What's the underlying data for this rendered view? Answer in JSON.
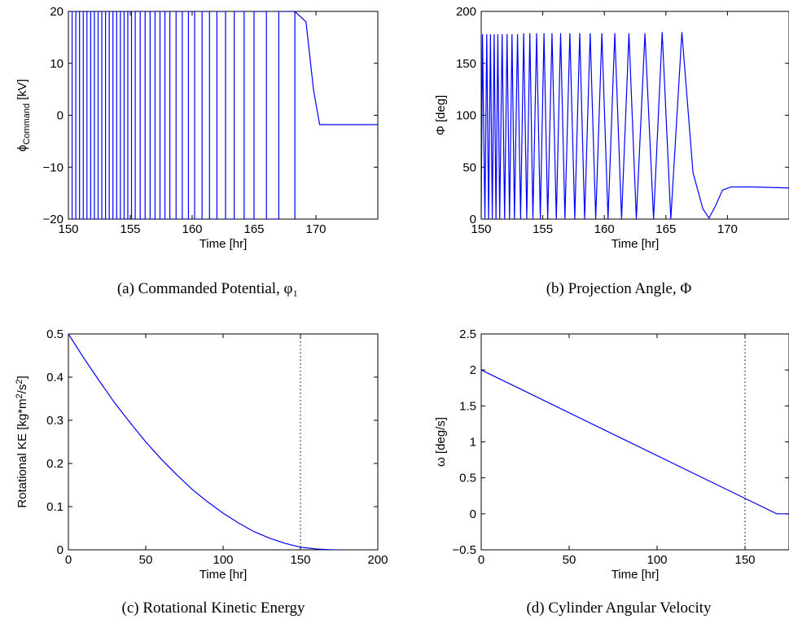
{
  "chart_data": [
    {
      "type": "line",
      "caption": "(a) Commanded Potential, φ₁",
      "xlabel": "Time [hr]",
      "ylabel": "φ_Command [kV]",
      "xlim": [
        150,
        175
      ],
      "ylim": [
        -20,
        20
      ],
      "xticks": [
        150,
        155,
        160,
        165,
        170
      ],
      "yticks": [
        -20,
        -10,
        0,
        10,
        20
      ],
      "series": [
        {
          "description": "square-wave switching between +20 and -20 kV with decreasing frequency, then settles",
          "switch_times": [
            150.3,
            150.6,
            150.9,
            151.2,
            151.5,
            151.8,
            152.1,
            152.4,
            152.7,
            153.0,
            153.3,
            153.6,
            153.9,
            154.2,
            154.5,
            154.8,
            155.1,
            155.4,
            155.8,
            156.2,
            156.6,
            157.0,
            157.4,
            157.8,
            158.2,
            158.7,
            159.2,
            159.7,
            160.2,
            160.8,
            161.4,
            162.0,
            162.7,
            163.4,
            164.2,
            165.0,
            166.0,
            167.0,
            168.3
          ],
          "settle_x": [
            168.3,
            169.2,
            169.8,
            170.3,
            175
          ],
          "settle_y": [
            20,
            18,
            5,
            -1.8,
            -1.8
          ]
        }
      ]
    },
    {
      "type": "line",
      "caption": "(b) Projection Angle, Φ",
      "xlabel": "Time [hr]",
      "ylabel": "Φ [deg]",
      "xlim": [
        150,
        175
      ],
      "ylim": [
        0,
        200
      ],
      "xticks": [
        150,
        155,
        160,
        165,
        170
      ],
      "yticks": [
        0,
        50,
        100,
        150,
        200
      ],
      "series": [
        {
          "x": [
            150.0,
            150.1,
            150.3,
            150.45,
            150.6,
            150.75,
            150.9,
            151.05,
            151.2,
            151.35,
            151.5,
            151.7,
            151.9,
            152.1,
            152.3,
            152.5,
            152.7,
            152.95,
            153.2,
            153.45,
            153.7,
            153.95,
            154.2,
            154.5,
            154.8,
            155.1,
            155.4,
            155.75,
            156.1,
            156.45,
            156.8,
            157.2,
            157.6,
            158.0,
            158.4,
            158.85,
            159.3,
            159.8,
            160.3,
            160.85,
            161.4,
            162.0,
            162.6,
            163.3,
            164.0,
            164.7,
            165.4,
            166.3,
            167.2,
            168.0,
            168.5,
            169.0,
            169.6,
            170.3,
            172.0,
            175.0
          ],
          "y": [
            0,
            178,
            0,
            178,
            0,
            178,
            0,
            178,
            0,
            178,
            0,
            178,
            0,
            178,
            0,
            178,
            0,
            178,
            0,
            179,
            0,
            179,
            0,
            179,
            0,
            179,
            0,
            179,
            0,
            179,
            0,
            179,
            0,
            179,
            0,
            179,
            0,
            179,
            0,
            179,
            0,
            179,
            0,
            179,
            0,
            180,
            0,
            180,
            45,
            10,
            1,
            12,
            28,
            31,
            31,
            30
          ]
        }
      ]
    },
    {
      "type": "line",
      "caption": "(c) Rotational Kinetic Energy",
      "xlabel": "Time [hr]",
      "ylabel": "Rotational KE [kg*m²/s²]",
      "xlim": [
        0,
        200
      ],
      "ylim": [
        0,
        0.5
      ],
      "xticks": [
        0,
        50,
        100,
        150,
        200
      ],
      "yticks": [
        0,
        0.1,
        0.2,
        0.3,
        0.4,
        0.5
      ],
      "vline": 150,
      "series": [
        {
          "x": [
            0,
            10,
            20,
            30,
            40,
            50,
            60,
            70,
            80,
            90,
            100,
            110,
            120,
            130,
            140,
            150,
            160,
            170,
            175
          ],
          "y": [
            0.5,
            0.444,
            0.391,
            0.34,
            0.294,
            0.25,
            0.21,
            0.174,
            0.14,
            0.111,
            0.085,
            0.062,
            0.042,
            0.027,
            0.015,
            0.006,
            0.002,
            0.0,
            0.0
          ]
        }
      ]
    },
    {
      "type": "line",
      "caption": "(d) Cylinder Angular Velocity",
      "xlabel": "Time [hr]",
      "ylabel": "ω [deg/s]",
      "xlim": [
        0,
        175
      ],
      "ylim": [
        -0.5,
        2.5
      ],
      "xticks": [
        0,
        50,
        100,
        150
      ],
      "yticks": [
        -0.5,
        0,
        0.5,
        1,
        1.5,
        2,
        2.5
      ],
      "vline": 150,
      "series": [
        {
          "x": [
            0,
            168,
            170,
            175
          ],
          "y": [
            2.0,
            0.0,
            0.0,
            0.0
          ]
        }
      ]
    }
  ]
}
